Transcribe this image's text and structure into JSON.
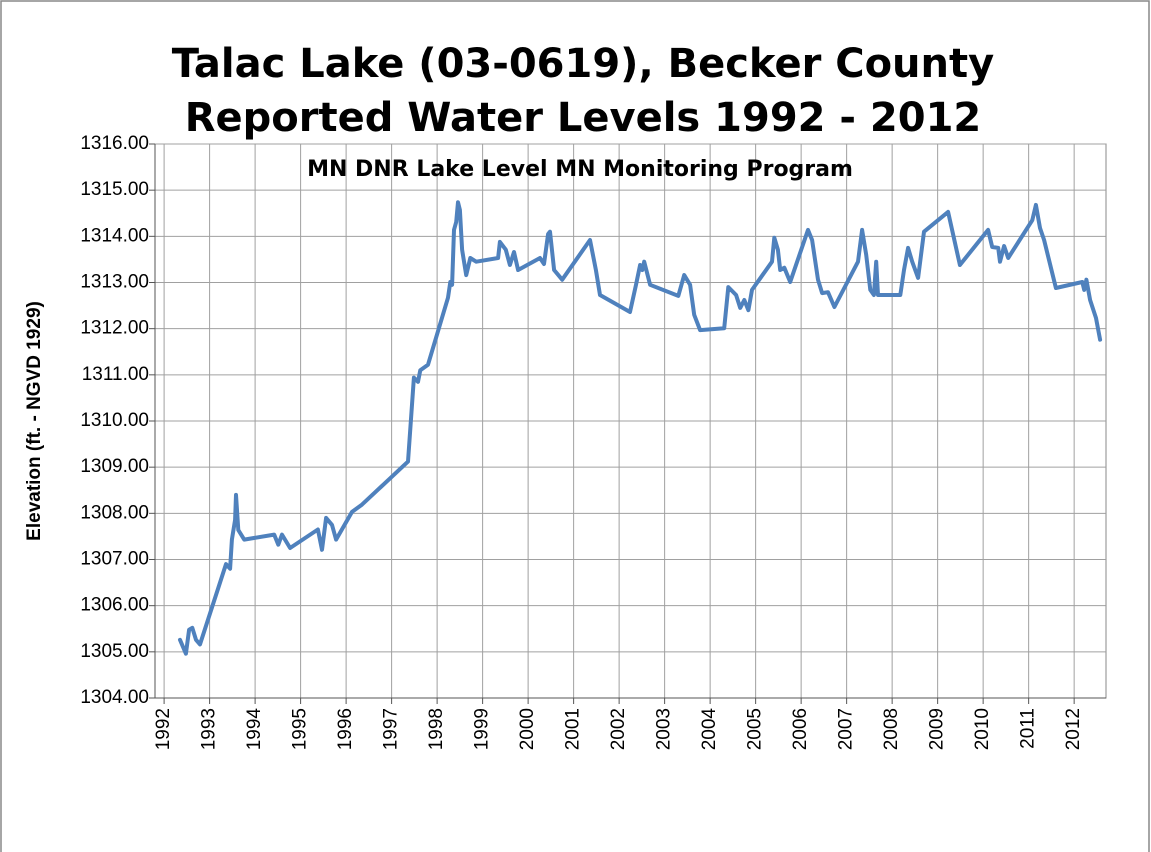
{
  "chart_data": {
    "type": "line",
    "title": "Talac Lake (03-0619), Becker County",
    "subtitle": "Reported Water Levels 1992 - 2012",
    "annotation": "MN DNR Lake Level MN Monitoring Program",
    "y_label": "Elevation (ft. - NGVD 1929)",
    "color": "#4f81bd",
    "grid": true,
    "xlim": [
      1991.8,
      2012.7
    ],
    "xticks": [
      1992,
      1993,
      1994,
      1995,
      1996,
      1997,
      1998,
      1999,
      2000,
      2001,
      2002,
      2003,
      2004,
      2005,
      2006,
      2007,
      2008,
      2009,
      2010,
      2011,
      2012
    ],
    "ylim": [
      1304,
      1316
    ],
    "yticks": [
      {
        "value": 1304,
        "label": "1304.00"
      },
      {
        "value": 1305,
        "label": "1305.00"
      },
      {
        "value": 1306,
        "label": "1306.00"
      },
      {
        "value": 1307,
        "label": "1307.00"
      },
      {
        "value": 1308,
        "label": "1308.00"
      },
      {
        "value": 1309,
        "label": "1309.00"
      },
      {
        "value": 1310,
        "label": "1310.00"
      },
      {
        "value": 1311,
        "label": "1311.00"
      },
      {
        "value": 1312,
        "label": "1312.00"
      },
      {
        "value": 1313,
        "label": "1313.00"
      },
      {
        "value": 1314,
        "label": "1314.00"
      },
      {
        "value": 1315,
        "label": "1315.00"
      },
      {
        "value": 1316,
        "label": "1316.00"
      }
    ],
    "x": [
      1992.35,
      1992.44,
      1992.48,
      1992.55,
      1992.62,
      1992.7,
      1992.79,
      1993.36,
      1993.45,
      1993.49,
      1993.56,
      1993.58,
      1993.63,
      1993.76,
      1994.42,
      1994.51,
      1994.59,
      1994.77,
      1995.38,
      1995.47,
      1995.56,
      1995.69,
      1995.78,
      1996.13,
      1996.35,
      1997.36,
      1997.49,
      1997.58,
      1997.63,
      1997.8,
      1998.24,
      1998.29,
      1998.33,
      1998.37,
      1998.42,
      1998.46,
      1998.5,
      1998.55,
      1998.64,
      1998.73,
      1998.86,
      1999.34,
      1999.38,
      1999.51,
      1999.6,
      1999.69,
      1999.78,
      2000.26,
      2000.35,
      2000.44,
      2000.48,
      2000.57,
      2000.75,
      2001.36,
      2001.49,
      2001.58,
      2002.24,
      2002.37,
      2002.46,
      2002.51,
      2002.55,
      2002.68,
      2003.3,
      2003.43,
      2003.56,
      2003.65,
      2003.78,
      2004.31,
      2004.4,
      2004.57,
      2004.66,
      2004.75,
      2004.84,
      2004.92,
      2005.36,
      2005.41,
      2005.49,
      2005.54,
      2005.63,
      2005.76,
      2006.15,
      2006.24,
      2006.37,
      2006.46,
      2006.59,
      2006.73,
      2007.25,
      2007.34,
      2007.43,
      2007.52,
      2007.6,
      2007.65,
      2007.69,
      2008.18,
      2008.26,
      2008.35,
      2008.44,
      2008.57,
      2008.7,
      2009.23,
      2009.49,
      2010.11,
      2010.2,
      2010.33,
      2010.37,
      2010.46,
      2010.55,
      2011.08,
      2011.16,
      2011.25,
      2011.34,
      2011.6,
      2012.18,
      2012.22,
      2012.27,
      2012.35,
      2012.48,
      2012.57
    ],
    "values": [
      1305.26,
      1305.05,
      1304.96,
      1305.48,
      1305.52,
      1305.26,
      1305.16,
      1306.9,
      1306.8,
      1307.43,
      1307.86,
      1308.4,
      1307.64,
      1307.43,
      1307.54,
      1307.32,
      1307.54,
      1307.25,
      1307.65,
      1307.21,
      1307.9,
      1307.75,
      1307.43,
      1308.03,
      1308.19,
      1309.12,
      1310.94,
      1310.85,
      1311.1,
      1311.22,
      1312.67,
      1313.01,
      1312.95,
      1314.14,
      1314.31,
      1314.74,
      1314.57,
      1313.71,
      1313.16,
      1313.53,
      1313.45,
      1313.53,
      1313.88,
      1313.71,
      1313.38,
      1313.66,
      1313.27,
      1313.53,
      1313.4,
      1314.05,
      1314.1,
      1313.27,
      1313.06,
      1313.92,
      1313.27,
      1312.73,
      1312.36,
      1312.95,
      1313.38,
      1313.27,
      1313.45,
      1312.95,
      1312.71,
      1313.16,
      1312.95,
      1312.3,
      1311.97,
      1312.01,
      1312.9,
      1312.73,
      1312.45,
      1312.62,
      1312.4,
      1312.84,
      1313.45,
      1313.97,
      1313.71,
      1313.27,
      1313.32,
      1313.01,
      1314.14,
      1313.92,
      1313.06,
      1312.77,
      1312.79,
      1312.47,
      1313.45,
      1314.14,
      1313.6,
      1312.84,
      1312.73,
      1313.45,
      1312.73,
      1312.73,
      1313.27,
      1313.75,
      1313.45,
      1313.1,
      1314.1,
      1314.53,
      1313.38,
      1314.14,
      1313.77,
      1313.75,
      1313.45,
      1313.79,
      1313.53,
      1314.35,
      1314.68,
      1314.18,
      1313.92,
      1312.88,
      1313.01,
      1312.84,
      1313.06,
      1312.62,
      1312.23,
      1311.76
    ]
  }
}
